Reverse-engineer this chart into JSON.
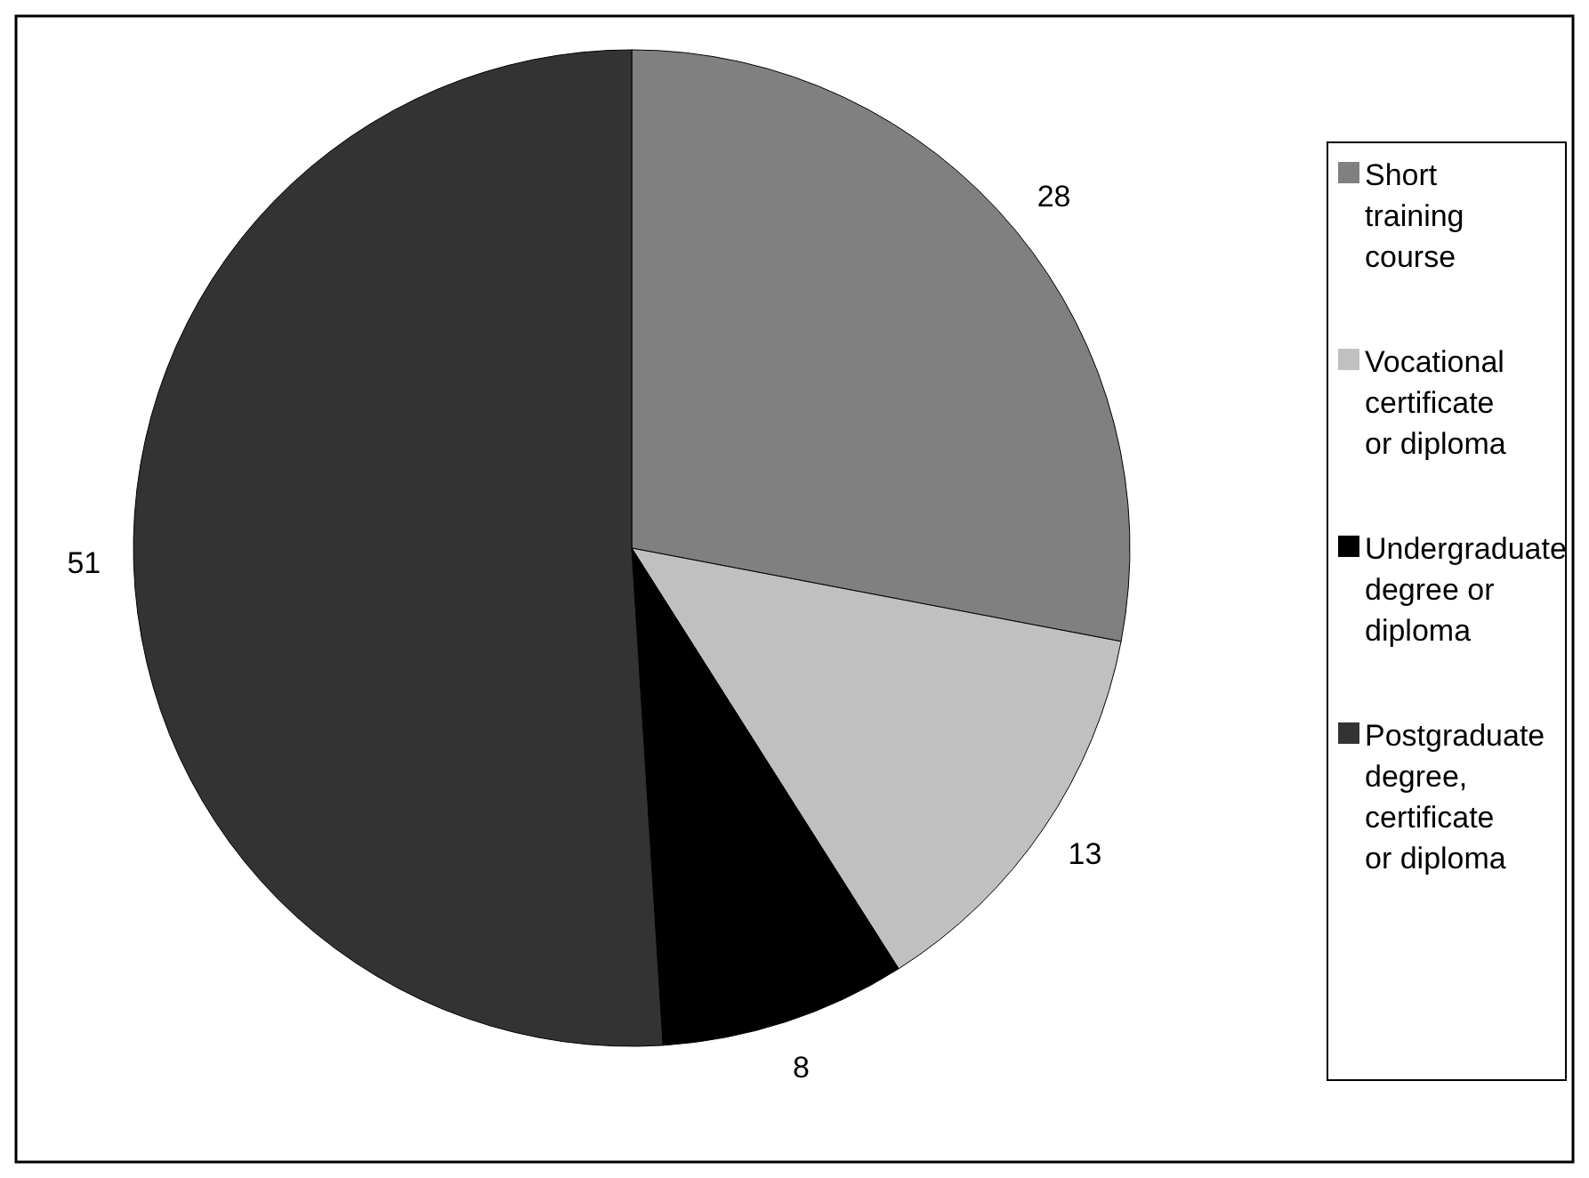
{
  "chart_data": {
    "type": "pie",
    "categories": [
      "Short training course",
      "Vocational certificate or diploma",
      "Undergraduate degree or diploma",
      "Postgraduate degree, certificate or diploma"
    ],
    "values": [
      28,
      13,
      8,
      51
    ],
    "colors": [
      "#808080",
      "#c0c0c0",
      "#000000",
      "#333333"
    ],
    "data_labels": true,
    "legend": "right"
  }
}
